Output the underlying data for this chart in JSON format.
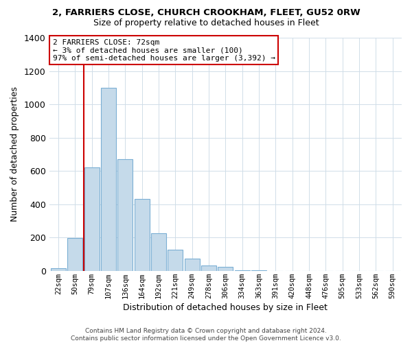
{
  "title": "2, FARRIERS CLOSE, CHURCH CROOKHAM, FLEET, GU52 0RW",
  "subtitle": "Size of property relative to detached houses in Fleet",
  "xlabel": "Distribution of detached houses by size in Fleet",
  "ylabel": "Number of detached properties",
  "bar_labels": [
    "22sqm",
    "50sqm",
    "79sqm",
    "107sqm",
    "136sqm",
    "164sqm",
    "192sqm",
    "221sqm",
    "249sqm",
    "278sqm",
    "306sqm",
    "334sqm",
    "363sqm",
    "391sqm",
    "420sqm",
    "448sqm",
    "476sqm",
    "505sqm",
    "533sqm",
    "562sqm",
    "590sqm"
  ],
  "bar_values": [
    15,
    195,
    620,
    1100,
    670,
    430,
    225,
    125,
    75,
    30,
    25,
    5,
    5,
    0,
    0,
    0,
    0,
    0,
    0,
    0,
    0
  ],
  "bar_color": "#c5daea",
  "bar_edge_color": "#7bafd4",
  "reference_line_color": "#cc0000",
  "reference_line_x": 1.5,
  "ylim": [
    0,
    1400
  ],
  "yticks": [
    0,
    200,
    400,
    600,
    800,
    1000,
    1200,
    1400
  ],
  "annotation_title": "2 FARRIERS CLOSE: 72sqm",
  "annotation_line1": "← 3% of detached houses are smaller (100)",
  "annotation_line2": "97% of semi-detached houses are larger (3,392) →",
  "footnote1": "Contains HM Land Registry data © Crown copyright and database right 2024.",
  "footnote2": "Contains public sector information licensed under the Open Government Licence v3.0.",
  "background_color": "#ffffff",
  "grid_color": "#d0dde8",
  "annotation_box_facecolor": "#ffffff",
  "annotation_box_edgecolor": "#cc0000"
}
